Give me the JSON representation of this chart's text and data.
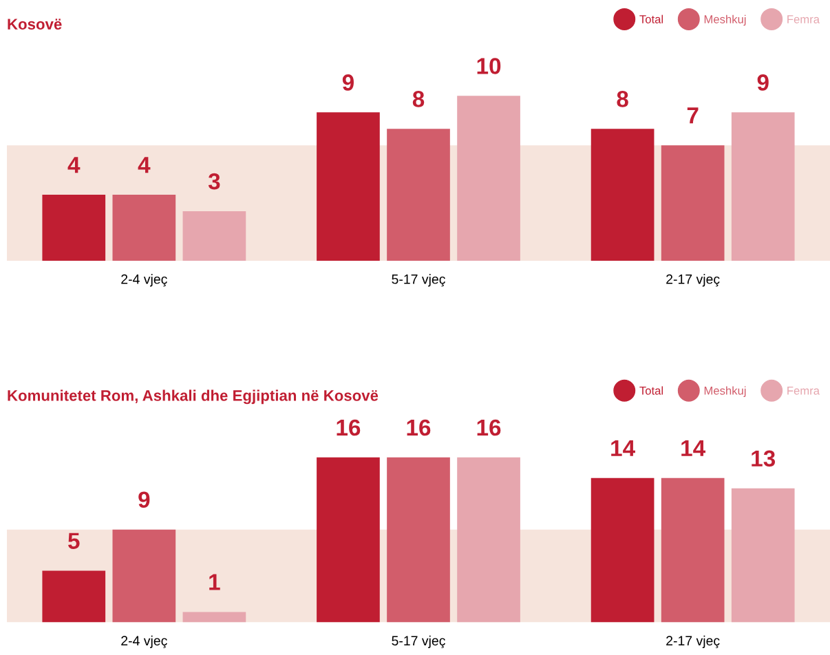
{
  "chart_data": [
    {
      "type": "bar",
      "title": "Kosovë",
      "categories": [
        "2-4 vjeç",
        "5-17 vjeç",
        "2-17 vjeç"
      ],
      "series": [
        {
          "name": "Total",
          "color": "#c01e32",
          "values": [
            4,
            9,
            8
          ]
        },
        {
          "name": "Meshkuj",
          "color": "#d25d6b",
          "values": [
            4,
            8,
            7
          ]
        },
        {
          "name": "Femra",
          "color": "#e6a6ae",
          "values": [
            3,
            10,
            9
          ]
        }
      ],
      "tick_labels": "x",
      "data_labels": true,
      "legend": "top right",
      "grid": false,
      "bands": [
        {
          "axis": "y",
          "from": 0,
          "to": 7,
          "color": "#f6e4dc"
        }
      ]
    },
    {
      "type": "bar",
      "title": "Komunitetet Rom, Ashkali dhe Egjiptian në Kosovë",
      "categories": [
        "2-4 vjeç",
        "5-17 vjeç",
        "2-17 vjeç"
      ],
      "series": [
        {
          "name": "Total",
          "color": "#c01e32",
          "values": [
            5,
            16,
            14
          ]
        },
        {
          "name": "Meshkuj",
          "color": "#d25d6b",
          "values": [
            9,
            16,
            14
          ]
        },
        {
          "name": "Femra",
          "color": "#e6a6ae",
          "values": [
            1,
            16,
            13
          ]
        }
      ],
      "tick_labels": "x",
      "data_labels": true,
      "legend": "top right",
      "grid": false,
      "bands": [
        {
          "axis": "y",
          "from": 0,
          "to": 9,
          "color": "#f6e4dc"
        }
      ]
    }
  ]
}
